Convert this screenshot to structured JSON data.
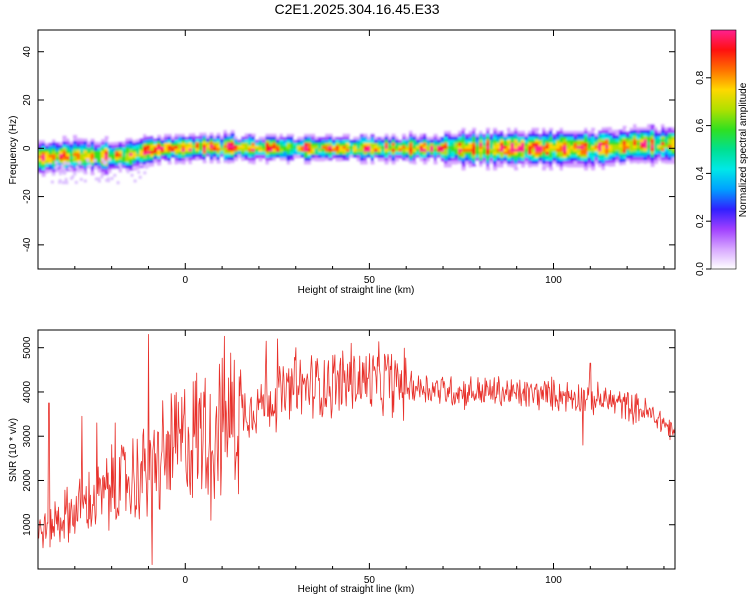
{
  "figure": {
    "title": "C2E1.2025.304.16.45.E33"
  },
  "chart_data": [
    {
      "type": "heatmap",
      "title": "C2E1.2025.304.16.45.E33",
      "xlabel": "Height of straight line (km)",
      "ylabel": "Frequency (Hz)",
      "xlim": [
        -40,
        133
      ],
      "ylim": [
        -50,
        49
      ],
      "xticks": [
        0,
        50,
        100
      ],
      "yticks": [
        -40,
        -20,
        0,
        20,
        40
      ],
      "colorbar": {
        "label": "Normalized spectral amplitude",
        "range": [
          0,
          1
        ],
        "ticks": [
          "0.0",
          "0.2",
          "0.4",
          "0.6",
          "0.8"
        ],
        "palette": [
          "#ffffff",
          "#d8a8ff",
          "#a040ff",
          "#3020ff",
          "#00a0ff",
          "#00e8e8",
          "#00e090",
          "#30e020",
          "#b0e000",
          "#ffd800",
          "#ff7000",
          "#ff1010",
          "#ff2090"
        ]
      },
      "ridge": {
        "description_values": "centre frequency (Hz) vs height (km)",
        "x": [
          -40,
          -30,
          -20,
          -15,
          -10,
          -5,
          0,
          5,
          20,
          50,
          80,
          110,
          118,
          122,
          133
        ],
        "y": [
          -4,
          -3,
          -3.5,
          -3,
          -1,
          0,
          0,
          0.5,
          0,
          0,
          0,
          0,
          0.5,
          1.5,
          1.5
        ]
      },
      "grid": false
    },
    {
      "type": "line",
      "xlabel": "Height of straight line (km)",
      "ylabel": "SNR (10 * v/v)",
      "xlim": [
        -40,
        133
      ],
      "ylim": [
        0,
        5400
      ],
      "xticks": [
        0,
        50,
        100
      ],
      "yticks": [
        1000,
        2000,
        3000,
        4000,
        5000
      ],
      "series": [
        {
          "color": "#e8302a",
          "envelope_x": [
            -40,
            -35,
            -30,
            -25,
            -20,
            -15,
            -10,
            -5,
            0,
            5,
            10,
            15,
            20,
            25,
            30,
            35,
            40,
            45,
            50,
            55,
            60,
            65,
            70,
            75,
            80,
            85,
            90,
            95,
            100,
            105,
            108,
            110,
            115,
            120,
            125,
            130,
            133
          ],
          "envelope_y": [
            800,
            1100,
            1300,
            1500,
            1800,
            2000,
            2200,
            2600,
            2900,
            3100,
            3300,
            3550,
            3750,
            3900,
            4050,
            4150,
            4200,
            4250,
            4250,
            4200,
            4150,
            4100,
            4050,
            4000,
            4000,
            4000,
            3950,
            3950,
            3950,
            3900,
            3900,
            3850,
            3800,
            3700,
            3550,
            3300,
            3050
          ],
          "spikes": [
            [
              -37,
              3750
            ],
            [
              -28,
              3450
            ],
            [
              -24,
              3300
            ],
            [
              -19,
              3300
            ],
            [
              -10,
              5300
            ],
            [
              -9,
              100
            ],
            [
              -6,
              3200
            ],
            [
              5,
              4000
            ],
            [
              7,
              1100
            ],
            [
              15,
              4500
            ],
            [
              22,
              5150
            ],
            [
              25,
              5200
            ],
            [
              30,
              5000
            ],
            [
              45,
              5100
            ],
            [
              55,
              4850
            ],
            [
              108,
              2800
            ],
            [
              110,
              4650
            ]
          ]
        }
      ],
      "grid": false
    }
  ]
}
